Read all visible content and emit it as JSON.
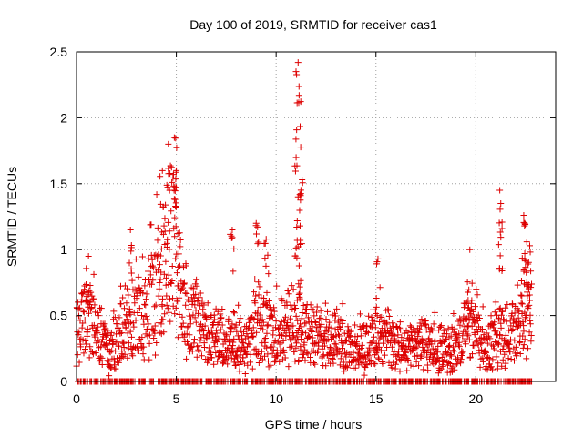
{
  "chart_data": {
    "type": "scatter",
    "title": "Day 100 of 2019, SRMTID for receiver cas1",
    "xlabel": "GPS time / hours",
    "ylabel": "SRMTID / TECUs",
    "xlim": [
      0,
      24
    ],
    "ylim": [
      0,
      2.5
    ],
    "x_ticks": [
      0,
      5,
      10,
      15,
      20
    ],
    "x_tick_labels": [
      "0",
      "5",
      "10",
      "15",
      "20"
    ],
    "y_ticks": [
      0,
      0.5,
      1,
      1.5,
      2,
      2.5
    ],
    "y_tick_labels": [
      "0",
      "0.5",
      "1",
      "1.5",
      "2",
      "2.5"
    ],
    "grid": true,
    "legend": "none",
    "marker": "plus",
    "color": "#dd0000",
    "series": [
      {
        "name": "cas1",
        "trend": [
          [
            0.0,
            0.45
          ],
          [
            0.5,
            0.5
          ],
          [
            1.0,
            0.45
          ],
          [
            1.5,
            0.25
          ],
          [
            2.0,
            0.3
          ],
          [
            2.5,
            0.5
          ],
          [
            3.0,
            0.55
          ],
          [
            3.5,
            0.55
          ],
          [
            4.0,
            0.75
          ],
          [
            4.5,
            1.0
          ],
          [
            4.8,
            1.2
          ],
          [
            5.0,
            1.1
          ],
          [
            5.5,
            0.45
          ],
          [
            6.0,
            0.5
          ],
          [
            6.5,
            0.35
          ],
          [
            7.0,
            0.4
          ],
          [
            7.5,
            0.3
          ],
          [
            8.0,
            0.35
          ],
          [
            8.5,
            0.3
          ],
          [
            9.0,
            0.45
          ],
          [
            9.5,
            0.45
          ],
          [
            10.0,
            0.4
          ],
          [
            10.5,
            0.45
          ],
          [
            11.0,
            0.55
          ],
          [
            11.5,
            0.45
          ],
          [
            12.0,
            0.35
          ],
          [
            12.5,
            0.35
          ],
          [
            13.0,
            0.35
          ],
          [
            13.5,
            0.3
          ],
          [
            14.0,
            0.25
          ],
          [
            14.5,
            0.3
          ],
          [
            15.0,
            0.4
          ],
          [
            15.5,
            0.35
          ],
          [
            16.0,
            0.3
          ],
          [
            16.5,
            0.25
          ],
          [
            17.0,
            0.3
          ],
          [
            17.5,
            0.3
          ],
          [
            18.0,
            0.28
          ],
          [
            18.5,
            0.25
          ],
          [
            19.0,
            0.28
          ],
          [
            19.5,
            0.45
          ],
          [
            20.0,
            0.4
          ],
          [
            20.5,
            0.3
          ],
          [
            21.0,
            0.4
          ],
          [
            21.5,
            0.35
          ],
          [
            22.0,
            0.45
          ],
          [
            22.5,
            0.55
          ],
          [
            22.8,
            0.6
          ]
        ],
        "peaks": [
          [
            0.6,
            0.95
          ],
          [
            2.7,
            1.15
          ],
          [
            4.3,
            1.6
          ],
          [
            4.6,
            1.8
          ],
          [
            4.9,
            1.85
          ],
          [
            5.0,
            1.6
          ],
          [
            7.8,
            1.15
          ],
          [
            9.0,
            1.2
          ],
          [
            9.5,
            1.08
          ],
          [
            11.0,
            1.7
          ],
          [
            11.1,
            2.42
          ],
          [
            11.15,
            2.17
          ],
          [
            11.3,
            1.53
          ],
          [
            11.1,
            1.4
          ],
          [
            11.2,
            1.18
          ],
          [
            15.1,
            0.93
          ],
          [
            19.7,
            1.0
          ],
          [
            21.2,
            1.45
          ],
          [
            21.25,
            1.35
          ],
          [
            22.4,
            1.26
          ],
          [
            22.45,
            1.2
          ],
          [
            22.7,
            1.03
          ]
        ],
        "zero_band_range": [
          0,
          22.8
        ]
      }
    ]
  }
}
